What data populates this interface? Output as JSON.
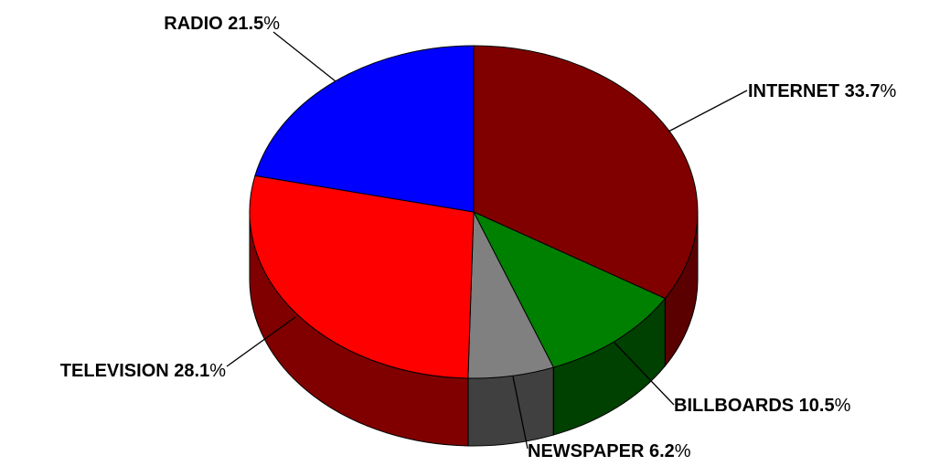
{
  "chart_data": {
    "type": "pie",
    "style": "3d",
    "legend": "none",
    "slices": [
      {
        "label": "INTERNET",
        "value": 33.7,
        "display": "33.7",
        "color": "#800000",
        "side_color": "#5a0000"
      },
      {
        "label": "BILLBOARDS",
        "value": 10.5,
        "display": "10.5",
        "color": "#008000",
        "side_color": "#004000"
      },
      {
        "label": "NEWSPAPER",
        "value": 6.2,
        "display": "6.2",
        "color": "#808080",
        "side_color": "#404040"
      },
      {
        "label": "TELEVISION",
        "value": 28.1,
        "display": "28.1",
        "color": "#ff0000",
        "side_color": "#800000"
      },
      {
        "label": "RADIO",
        "value": 21.5,
        "display": "21.5",
        "color": "#0000ff",
        "side_color": "#000080"
      }
    ],
    "percent_sign": "%"
  }
}
